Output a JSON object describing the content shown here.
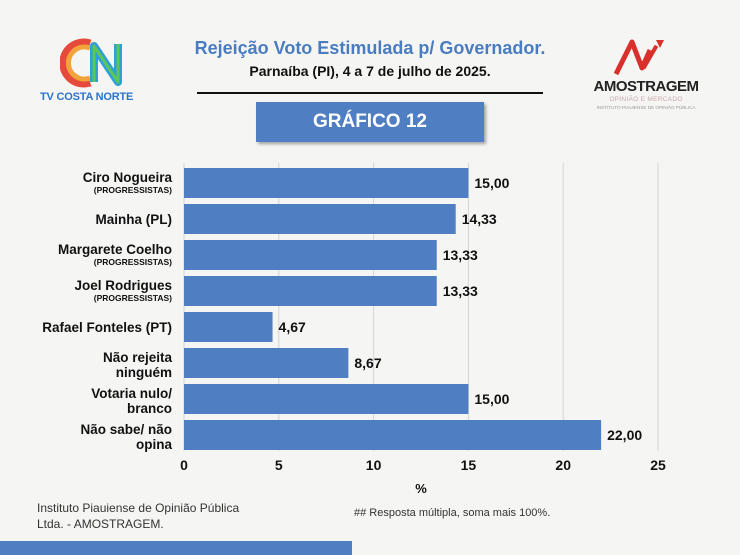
{
  "header": {
    "logo_left_text": "TV COSTA NORTE",
    "title": "Rejeição Voto Estimulada p/ Governador.",
    "subtitle": "Parnaíba (PI), 4 a 7 de julho de 2025.",
    "badge": "GRÁFICO 12"
  },
  "logo_right": {
    "brand": "AMOSTRAGEM",
    "tagline": "OPINIÃO E MERCADO",
    "institute": "INSTITUTO PIAUIENSE DE OPINIÃO PÚBLICA"
  },
  "colors": {
    "bar": "#4f7ec2",
    "title": "#4a7cc0",
    "accent_red": "#d9302c"
  },
  "chart_data": {
    "type": "bar",
    "orientation": "horizontal",
    "categories": [
      {
        "name": "Ciro Nogueira",
        "party": "(PROGRESSISTAS)"
      },
      {
        "name": "Mainha (PL)",
        "party": ""
      },
      {
        "name": "Margarete Coelho",
        "party": "(PROGRESSISTAS)"
      },
      {
        "name": "Joel Rodrigues",
        "party": "(PROGRESSISTAS)"
      },
      {
        "name": "Rafael Fonteles (PT)",
        "party": ""
      },
      {
        "name": "Não rejeita\nninguém",
        "party": ""
      },
      {
        "name": "Votaria nulo/\nbranco",
        "party": ""
      },
      {
        "name": "Não sabe/ não\nopina",
        "party": ""
      }
    ],
    "values": [
      15.0,
      14.33,
      13.33,
      13.33,
      4.67,
      8.67,
      15.0,
      22.0
    ],
    "data_labels": [
      "15,00",
      "14,33",
      "13,33",
      "13,33",
      "4,67",
      "8,67",
      "15,00",
      "22,00"
    ],
    "xlim": [
      0,
      25
    ],
    "xticks": [
      0,
      5,
      10,
      15,
      20,
      25
    ],
    "xlabel": "%",
    "grid": true
  },
  "footer": {
    "source": "Instituto Piauiense de Opinião Pública Ltda. - AMOSTRAGEM.",
    "note": "## Resposta múltipla, soma mais 100%."
  }
}
